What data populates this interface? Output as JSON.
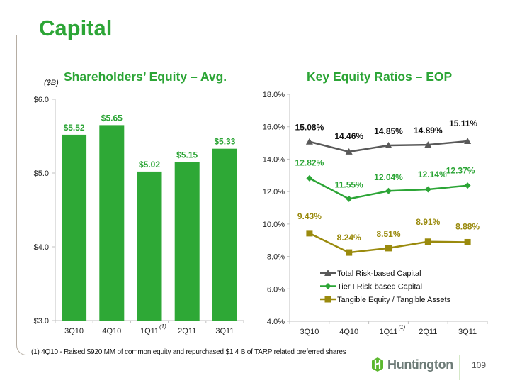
{
  "slide": {
    "title": "Capital",
    "page_number": "109",
    "footnote": "(1)  4Q10  - Raised $920 MM of common equity and repurchased $1.4 B of TARP related preferred shares",
    "logo_text": "Huntington",
    "colors": {
      "brand_green": "#2ca536",
      "frame": "#b5ada3"
    }
  },
  "chart_data": [
    {
      "type": "bar",
      "title": "Shareholders’ Equity – Avg.",
      "unit_label": "($B)",
      "xlabel": "",
      "ylabel": "",
      "categories": [
        "3Q10",
        "4Q10",
        "1Q11",
        "2Q11",
        "3Q11"
      ],
      "category_footnotes": [
        "",
        "",
        "(1)",
        "",
        ""
      ],
      "values": [
        5.52,
        5.65,
        5.02,
        5.15,
        5.33
      ],
      "data_labels": [
        "$5.52",
        "$5.65",
        "$5.02",
        "$5.15",
        "$5.33"
      ],
      "ylim": [
        3.0,
        6.0
      ],
      "yticks": [
        3.0,
        4.0,
        5.0,
        6.0
      ],
      "ytick_labels": [
        "$3.0",
        "$4.0",
        "$5.0",
        "$6.0"
      ],
      "grid": false,
      "bar_color": "#2ea836",
      "label_color": "#2ca536"
    },
    {
      "type": "line",
      "title": "Key Equity Ratios – EOP",
      "xlabel": "",
      "ylabel": "",
      "categories": [
        "3Q10",
        "4Q10",
        "1Q11",
        "2Q11",
        "3Q11"
      ],
      "category_footnotes": [
        "",
        "",
        "(1)",
        "",
        ""
      ],
      "ylim": [
        4.0,
        18.0
      ],
      "yticks": [
        4.0,
        6.0,
        8.0,
        10.0,
        12.0,
        14.0,
        16.0,
        18.0
      ],
      "ytick_labels": [
        "4.0%",
        "6.0%",
        "8.0%",
        "10.0%",
        "12.0%",
        "14.0%",
        "16.0%",
        "18.0%"
      ],
      "grid": false,
      "legend_position": "bottom-center-inside",
      "series": [
        {
          "name": "Total Risk-based Capital",
          "marker": "triangle",
          "color": "#595959",
          "label_color": "#111111",
          "values": [
            15.08,
            14.46,
            14.85,
            14.89,
            15.11
          ],
          "data_labels": [
            "15.08%",
            "14.46%",
            "14.85%",
            "14.89%",
            "15.11%"
          ]
        },
        {
          "name": "Tier I Risk-based Capital",
          "marker": "diamond",
          "color": "#2ca536",
          "label_color": "#2ca536",
          "values": [
            12.82,
            11.55,
            12.04,
            12.14,
            12.37
          ],
          "data_labels": [
            "12.82%",
            "11.55%",
            "12.04%",
            "12.14%",
            "12.37%"
          ]
        },
        {
          "name": "Tangible Equity / Tangible Assets",
          "marker": "square",
          "color": "#9a8a0d",
          "label_color": "#9a8a0d",
          "values": [
            9.43,
            8.24,
            8.51,
            8.91,
            8.88
          ],
          "data_labels": [
            "9.43%",
            "8.24%",
            "8.51%",
            "8.91%",
            "8.88%"
          ]
        }
      ]
    }
  ]
}
